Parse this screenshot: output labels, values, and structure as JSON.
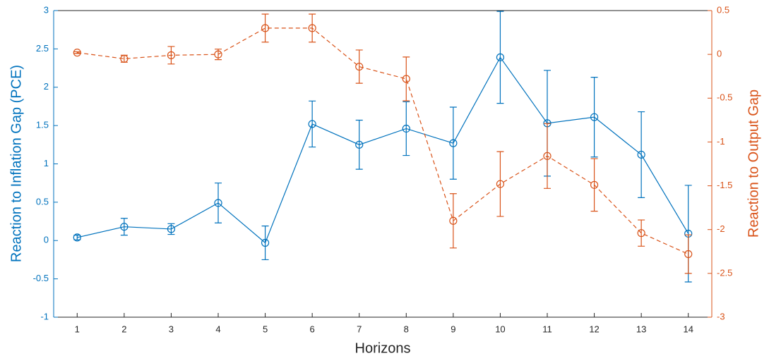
{
  "chart_data": {
    "type": "line",
    "x_label": "Horizons",
    "y_label": "Reaction to Inflation Gap (PCE)",
    "y2_label": "Reaction to Output Gap",
    "x": [
      1,
      2,
      3,
      4,
      5,
      6,
      7,
      8,
      9,
      10,
      11,
      12,
      13,
      14
    ],
    "xlim": [
      0.5,
      14.5
    ],
    "xticks": [
      1,
      2,
      3,
      4,
      5,
      6,
      7,
      8,
      9,
      10,
      11,
      12,
      13,
      14
    ],
    "ylim": [
      -1,
      3
    ],
    "yticks": [
      -1,
      -0.5,
      0,
      0.5,
      1,
      1.5,
      2,
      2.5,
      3
    ],
    "y2lim": [
      -3,
      0.5
    ],
    "y2ticks": [
      -3,
      -2.5,
      -2,
      -1.5,
      -1,
      -0.5,
      0,
      0.5
    ],
    "series": [
      {
        "name": "Reaction to Inflation Gap (PCE)",
        "color": "#0072bd",
        "axis": "y",
        "dashed": false,
        "values": [
          0.04,
          0.18,
          0.15,
          0.49,
          -0.03,
          1.52,
          1.25,
          1.46,
          1.27,
          2.39,
          1.53,
          1.61,
          1.12,
          0.09
        ],
        "errors": [
          0.03,
          0.11,
          0.07,
          0.26,
          0.22,
          0.3,
          0.32,
          0.35,
          0.47,
          0.6,
          0.69,
          0.52,
          0.56,
          0.63
        ]
      },
      {
        "name": "Reaction to Output Gap",
        "color": "#d95319",
        "axis": "y2",
        "dashed": true,
        "values": [
          0.02,
          -0.05,
          -0.01,
          0.0,
          0.3,
          0.3,
          -0.14,
          -0.28,
          -1.9,
          -1.48,
          -1.16,
          -1.49,
          -2.04,
          -2.28
        ],
        "errors": [
          0.01,
          0.04,
          0.1,
          0.06,
          0.16,
          0.16,
          0.19,
          0.25,
          0.31,
          0.37,
          0.37,
          0.3,
          0.15,
          0.22
        ]
      }
    ]
  }
}
